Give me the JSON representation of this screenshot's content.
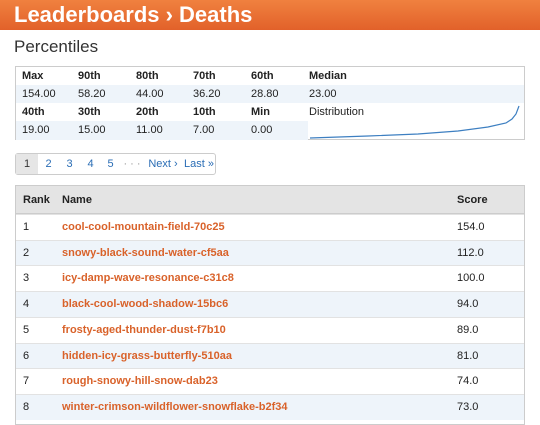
{
  "header": {
    "title": "Leaderboards › Deaths"
  },
  "percentiles": {
    "title": "Percentiles",
    "row1": {
      "labels": [
        "Max",
        "90th",
        "80th",
        "70th",
        "60th",
        "Median"
      ],
      "values": [
        "154.00",
        "58.20",
        "44.00",
        "36.20",
        "28.80",
        "23.00"
      ]
    },
    "row2": {
      "labels": [
        "40th",
        "30th",
        "20th",
        "10th",
        "Min"
      ],
      "values": [
        "19.00",
        "15.00",
        "11.00",
        "7.00",
        "0.00"
      ]
    },
    "distribution_label": "Distribution"
  },
  "pagination": {
    "pages": [
      "1",
      "2",
      "3",
      "4",
      "5"
    ],
    "ellipsis": "· · ·",
    "next": "Next ›",
    "last": "Last »"
  },
  "table": {
    "columns": [
      "Rank",
      "Name",
      "Score"
    ],
    "rows": [
      [
        "1",
        "cool-cool-mountain-field-70c25",
        "154.0"
      ],
      [
        "2",
        "snowy-black-sound-water-cf5aa",
        "112.0"
      ],
      [
        "3",
        "icy-damp-wave-resonance-c31c8",
        "100.0"
      ],
      [
        "4",
        "black-cool-wood-shadow-15bc6",
        "94.0"
      ],
      [
        "5",
        "frosty-aged-thunder-dust-f7b10",
        "89.0"
      ],
      [
        "6",
        "hidden-icy-grass-butterfly-510aa",
        "81.0"
      ],
      [
        "7",
        "rough-snowy-hill-snow-dab23",
        "74.0"
      ],
      [
        "8",
        "winter-crimson-wildflower-snowflake-b2f34",
        "73.0"
      ]
    ]
  }
}
